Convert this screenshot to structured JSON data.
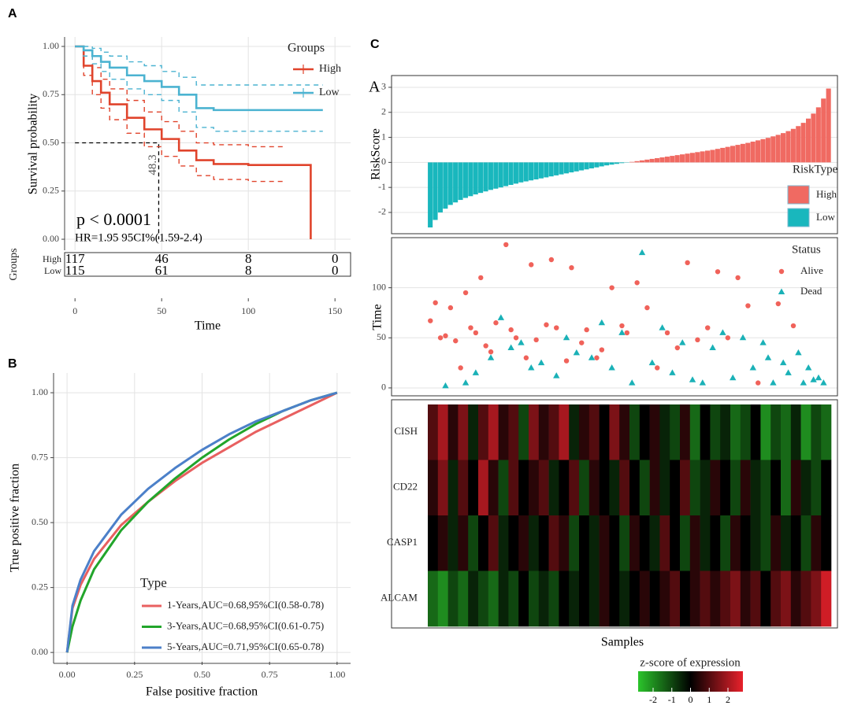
{
  "panels": [
    "A",
    "B",
    "C"
  ],
  "chart_data": [
    {
      "type": "line",
      "step": true,
      "ylabel": "Survival probability",
      "xlabel": "Time",
      "legend_title": "Groups",
      "xlim": [
        -6,
        159
      ],
      "ylim": [
        -0.057,
        1.049
      ],
      "xticks": [
        0,
        50,
        100,
        150
      ],
      "yticks": [
        {
          "value": 0,
          "label": "0.00"
        },
        {
          "value": 0.25,
          "label": "0.25"
        },
        {
          "value": 0.5,
          "label": "0.50"
        },
        {
          "value": 0.75,
          "label": "0.75"
        },
        {
          "value": 1,
          "label": "1.00"
        }
      ],
      "grid": true,
      "series": [
        {
          "name": "High",
          "color": "#e0442c",
          "x": [
            0,
            5,
            10,
            15,
            20,
            30,
            40,
            50,
            60,
            70,
            80,
            100,
            120,
            136
          ],
          "values": [
            1,
            0.9,
            0.82,
            0.76,
            0.7,
            0.63,
            0.57,
            0.52,
            0.46,
            0.41,
            0.39,
            0.385,
            0.385,
            0
          ],
          "ci_upper": [
            1,
            0.95,
            0.89,
            0.83,
            0.78,
            0.72,
            0.66,
            0.61,
            0.56,
            0.5,
            0.49,
            0.48,
            0.48,
            null
          ],
          "ci_lower": [
            1,
            0.85,
            0.75,
            0.68,
            0.62,
            0.55,
            0.48,
            0.43,
            0.38,
            0.33,
            0.31,
            0.3,
            0.3,
            null
          ]
        },
        {
          "name": "Low",
          "color": "#4bb3d1",
          "x": [
            0,
            5,
            10,
            15,
            20,
            30,
            40,
            50,
            60,
            70,
            80,
            100,
            120,
            143
          ],
          "values": [
            1,
            0.98,
            0.95,
            0.92,
            0.89,
            0.85,
            0.82,
            0.79,
            0.75,
            0.68,
            0.67,
            0.67,
            0.67,
            0.67
          ],
          "ci_upper": [
            1,
            1,
            0.99,
            0.97,
            0.95,
            0.92,
            0.9,
            0.87,
            0.84,
            0.8,
            0.8,
            0.8,
            0.8,
            0.8
          ],
          "ci_lower": [
            1,
            0.95,
            0.91,
            0.87,
            0.83,
            0.78,
            0.75,
            0.72,
            0.66,
            0.58,
            0.56,
            0.56,
            0.56,
            0.56
          ]
        }
      ],
      "median": {
        "value": 48.3,
        "label": "48.3",
        "survival": 0.5
      },
      "annotations": [
        "p < 0.0001",
        "HR=1.95 95CI%(1.59-2.4)"
      ],
      "risk_table": {
        "title": "Groups",
        "rows": [
          {
            "name": "High",
            "values": [
              117,
              46,
              8,
              0
            ]
          },
          {
            "name": "Low",
            "values": [
              115,
              61,
              8,
              0
            ]
          }
        ]
      }
    },
    {
      "type": "line",
      "xlabel": "False positive fraction",
      "ylabel": "True positive fraction",
      "legend_title": "Type",
      "xlim": [
        -0.05,
        1.05
      ],
      "ylim": [
        -0.042,
        1.076
      ],
      "xticks": [
        {
          "value": 0,
          "label": "0.00"
        },
        {
          "value": 0.25,
          "label": "0.25"
        },
        {
          "value": 0.5,
          "label": "0.50"
        },
        {
          "value": 0.75,
          "label": "0.75"
        },
        {
          "value": 1,
          "label": "1.00"
        }
      ],
      "yticks": [
        {
          "value": 0,
          "label": "0.00"
        },
        {
          "value": 0.25,
          "label": "0.25"
        },
        {
          "value": 0.5,
          "label": "0.50"
        },
        {
          "value": 0.75,
          "label": "0.75"
        },
        {
          "value": 1,
          "label": "1.00"
        }
      ],
      "grid": true,
      "series": [
        {
          "name": "1-Years,AUC=0.68,95%CI(0.58-0.78)",
          "color": "#e86060",
          "x": [
            0,
            0.02,
            0.05,
            0.1,
            0.2,
            0.3,
            0.4,
            0.5,
            0.6,
            0.7,
            0.8,
            0.9,
            1
          ],
          "values": [
            0,
            0.17,
            0.26,
            0.36,
            0.49,
            0.58,
            0.66,
            0.73,
            0.79,
            0.85,
            0.9,
            0.95,
            1
          ]
        },
        {
          "name": "3-Years,AUC=0.68,95%CI(0.61-0.75)",
          "color": "#22a52b",
          "x": [
            0,
            0.02,
            0.05,
            0.1,
            0.2,
            0.3,
            0.4,
            0.5,
            0.6,
            0.7,
            0.8,
            0.9,
            1
          ],
          "values": [
            0,
            0.1,
            0.2,
            0.32,
            0.47,
            0.58,
            0.67,
            0.75,
            0.82,
            0.88,
            0.93,
            0.97,
            1
          ]
        },
        {
          "name": "5-Years,AUC=0.71,95%CI(0.65-0.78)",
          "color": "#4c80c9",
          "x": [
            0,
            0.02,
            0.05,
            0.1,
            0.2,
            0.3,
            0.4,
            0.5,
            0.6,
            0.7,
            0.8,
            0.9,
            1
          ],
          "values": [
            0,
            0.18,
            0.28,
            0.39,
            0.53,
            0.63,
            0.71,
            0.78,
            0.84,
            0.89,
            0.93,
            0.97,
            1
          ]
        }
      ]
    },
    {
      "type": "bar",
      "label": "A",
      "ylabel": "RiskScore",
      "legend_title": "RiskType",
      "xlim": [
        -6.7,
        81.75
      ],
      "ylim": [
        -2.85,
        3.47
      ],
      "yticks": [
        -2,
        -1,
        0,
        1,
        2,
        3
      ],
      "grid": true,
      "legend": [
        {
          "name": "High",
          "color": "#f06a62"
        },
        {
          "name": "Low",
          "color": "#19b7bd"
        }
      ],
      "values": [
        -2.6,
        -2.3,
        -2.0,
        -1.85,
        -1.7,
        -1.6,
        -1.5,
        -1.42,
        -1.35,
        -1.28,
        -1.22,
        -1.16,
        -1.1,
        -1.05,
        -1.0,
        -0.95,
        -0.9,
        -0.85,
        -0.8,
        -0.76,
        -0.72,
        -0.68,
        -0.64,
        -0.6,
        -0.56,
        -0.52,
        -0.48,
        -0.44,
        -0.4,
        -0.36,
        -0.32,
        -0.28,
        -0.24,
        -0.2,
        -0.16,
        -0.12,
        -0.09,
        -0.06,
        -0.03,
        -0.01,
        0.02,
        0.05,
        0.08,
        0.11,
        0.14,
        0.17,
        0.2,
        0.23,
        0.26,
        0.29,
        0.32,
        0.35,
        0.38,
        0.41,
        0.44,
        0.47,
        0.5,
        0.54,
        0.58,
        0.62,
        0.66,
        0.7,
        0.74,
        0.78,
        0.83,
        0.88,
        0.93,
        0.98,
        1.04,
        1.1,
        1.17,
        1.25,
        1.34,
        1.45,
        1.58,
        1.75,
        1.95,
        2.2,
        2.55,
        2.95
      ]
    },
    {
      "type": "scatter",
      "ylabel": "Time",
      "legend_title": "Status",
      "xlim": [
        -6.7,
        81.75
      ],
      "ylim": [
        -7.9,
        150
      ],
      "yticks": [
        0,
        50,
        100
      ],
      "grid": true,
      "series": [
        {
          "name": "Alive",
          "color": "#f0625a",
          "marker": "circle",
          "x": [
            1,
            2,
            3,
            4,
            5,
            6,
            7,
            8,
            9,
            10,
            11,
            12,
            13,
            14,
            16,
            17,
            18,
            20,
            21,
            22,
            24,
            25,
            26,
            28,
            29,
            31,
            32,
            34,
            35,
            37,
            39,
            40,
            42,
            44,
            46,
            48,
            50,
            52,
            54,
            56,
            58,
            60,
            62,
            64,
            66,
            70,
            73
          ],
          "values": [
            67,
            85,
            50,
            52,
            80,
            47,
            20,
            95,
            60,
            55,
            110,
            42,
            36,
            65,
            143,
            58,
            50,
            30,
            123,
            48,
            63,
            128,
            60,
            27,
            120,
            45,
            58,
            30,
            38,
            100,
            62,
            55,
            105,
            80,
            20,
            55,
            40,
            125,
            48,
            60,
            116,
            50,
            110,
            82,
            5,
            84,
            62
          ]
        },
        {
          "name": "Dead",
          "color": "#1ab1b7",
          "marker": "triangle",
          "x": [
            4,
            8,
            10,
            13,
            15,
            17,
            19,
            21,
            23,
            26,
            28,
            30,
            33,
            35,
            37,
            39,
            41,
            43,
            45,
            47,
            49,
            51,
            53,
            55,
            57,
            59,
            61,
            63,
            65,
            67,
            68,
            69,
            71,
            72,
            74,
            75,
            76,
            77,
            78,
            79
          ],
          "values": [
            2,
            5,
            15,
            30,
            70,
            40,
            45,
            20,
            25,
            12,
            50,
            35,
            30,
            65,
            20,
            55,
            5,
            135,
            25,
            60,
            15,
            45,
            8,
            5,
            40,
            55,
            10,
            50,
            20,
            45,
            30,
            5,
            25,
            15,
            35,
            5,
            20,
            8,
            10,
            5
          ]
        }
      ]
    },
    {
      "type": "heatmap",
      "xlabel": "Samples",
      "legend_title": "z-score of expression",
      "colors": [
        "#2bc42b",
        "#000000",
        "#e8212b"
      ],
      "zlim": [
        -2.8,
        2.8
      ],
      "zticks": [
        -2,
        -1,
        0,
        1,
        2
      ],
      "rows": [
        {
          "name": "CISH",
          "values": [
            1,
            2,
            0.5,
            1.5,
            -0.5,
            1,
            2,
            0.5,
            1,
            -1,
            1.5,
            0.5,
            1,
            2,
            -0.5,
            0.5,
            1,
            0,
            1.5,
            0.5,
            -1,
            0,
            0.5,
            -0.5,
            -1,
            0.5,
            -1.5,
            0,
            -1,
            -0.5,
            -1.5,
            -1,
            0,
            -2,
            -1,
            -1.5,
            -0.5,
            -2,
            -1,
            -1.5
          ]
        },
        {
          "name": "CD22",
          "values": [
            0.5,
            1.5,
            -0.5,
            1,
            0,
            2,
            0.5,
            -1,
            1,
            0,
            0.5,
            1,
            -0.5,
            0,
            1,
            -1,
            0.5,
            0,
            -0.5,
            1,
            0,
            -1,
            0.5,
            -0.5,
            0,
            1,
            -1,
            -0.5,
            0.5,
            0,
            -1,
            0.5,
            -0.5,
            -1,
            0,
            -1.5,
            0.5,
            -0.5,
            -1,
            0
          ]
        },
        {
          "name": "CASP1",
          "values": [
            0,
            0.5,
            -0.5,
            0.5,
            -1,
            0,
            1,
            -0.5,
            0,
            0.5,
            -0.5,
            0,
            1,
            0.5,
            -1,
            0,
            -0.5,
            0.5,
            0,
            -1,
            0.5,
            0,
            -0.5,
            1,
            0,
            -1,
            0.5,
            -0.5,
            0,
            -1,
            0.5,
            0,
            -0.5,
            -1,
            0.5,
            -0.5,
            0,
            -1,
            0.5,
            0
          ]
        },
        {
          "name": "ALCAM",
          "values": [
            -1.5,
            -2,
            -1,
            -1.5,
            -0.5,
            -1,
            -1.5,
            -0.5,
            -1,
            0,
            -1,
            -0.5,
            -1,
            0,
            -0.5,
            0,
            -0.5,
            0.5,
            0,
            -0.5,
            0,
            0.5,
            0,
            0.5,
            1,
            0,
            0.5,
            1,
            0.5,
            1,
            1.5,
            0.5,
            1,
            0,
            1,
            1.5,
            0.5,
            1,
            1.5,
            2.5
          ]
        }
      ]
    }
  ]
}
